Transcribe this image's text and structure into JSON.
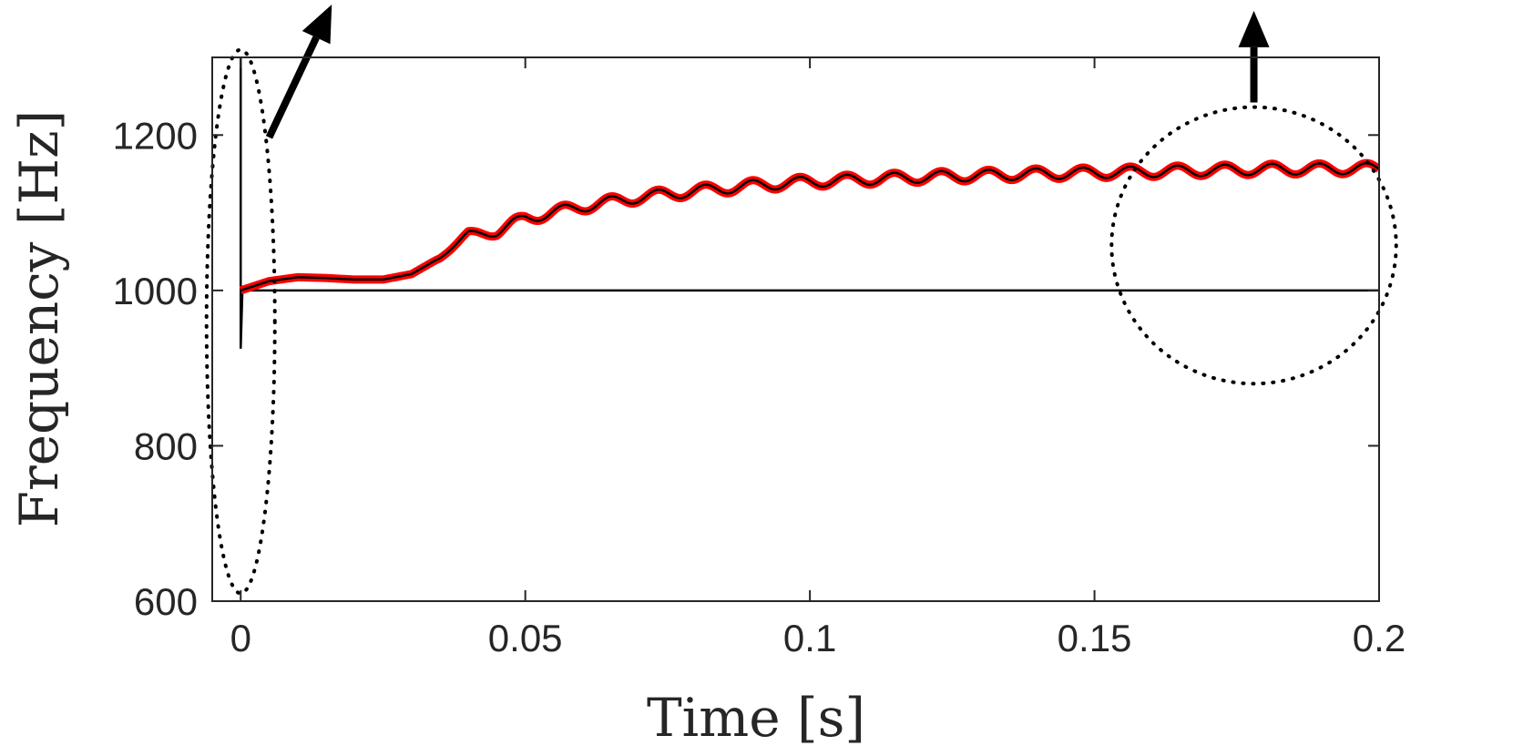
{
  "chart_data": {
    "type": "line",
    "title": "",
    "xlabel": "Time [s]",
    "ylabel": "Frequency [Hz]",
    "xlim": [
      -0.005,
      0.2
    ],
    "ylim": [
      600,
      1300
    ],
    "xticks": [
      0,
      0.05,
      0.1,
      0.15,
      0.2
    ],
    "xtick_labels": [
      "0",
      "0.05",
      "0.1",
      "0.15",
      "0.2"
    ],
    "yticks": [
      600,
      800,
      1000,
      1200
    ],
    "ytick_labels": [
      "600",
      "800",
      "1000",
      "1200"
    ],
    "grid": false,
    "colors": {
      "axes": "#262626",
      "reference": "#000000",
      "estimate": "#ff0000",
      "estimate_core": "#000000"
    },
    "series": [
      {
        "x": [
          0,
          0.005,
          0.2
        ],
        "values": [
          1000,
          1000,
          1000
        ],
        "initial_transient": {
          "time": 0,
          "max": 1300,
          "min": 925
        }
      },
      {
        "x": [
          0,
          0.005,
          0.01,
          0.015,
          0.02,
          0.025,
          0.03,
          0.035,
          0.04,
          0.045,
          0.05,
          0.06,
          0.07,
          0.08,
          0.09,
          0.1,
          0.12,
          0.14,
          0.16,
          0.18,
          0.2
        ],
        "values": [
          1000,
          1012,
          1017,
          1016,
          1014,
          1014,
          1021,
          1042,
          1073,
          1075,
          1093,
          1108,
          1120,
          1128,
          1135,
          1140,
          1146,
          1150,
          1153,
          1156,
          1157
        ],
        "oscillation": {
          "period": 0.0083,
          "amplitude": 7
        }
      }
    ],
    "annotations": [
      {
        "type": "dotted-ellipse",
        "around": "initial transient",
        "center": [
          0,
          960
        ],
        "radius_x": 0.006,
        "radius_y": 350
      },
      {
        "type": "dotted-circle",
        "around": "steady-state ripple",
        "center": [
          0.178,
          1058
        ],
        "radius_x": 0.025,
        "radius_y": 178
      },
      {
        "type": "arrow",
        "from": [
          0.005,
          1197
        ],
        "to": [
          0.016,
          1368
        ]
      },
      {
        "type": "arrow",
        "from": [
          0.178,
          1242
        ],
        "to": [
          0.178,
          1360
        ]
      }
    ]
  }
}
